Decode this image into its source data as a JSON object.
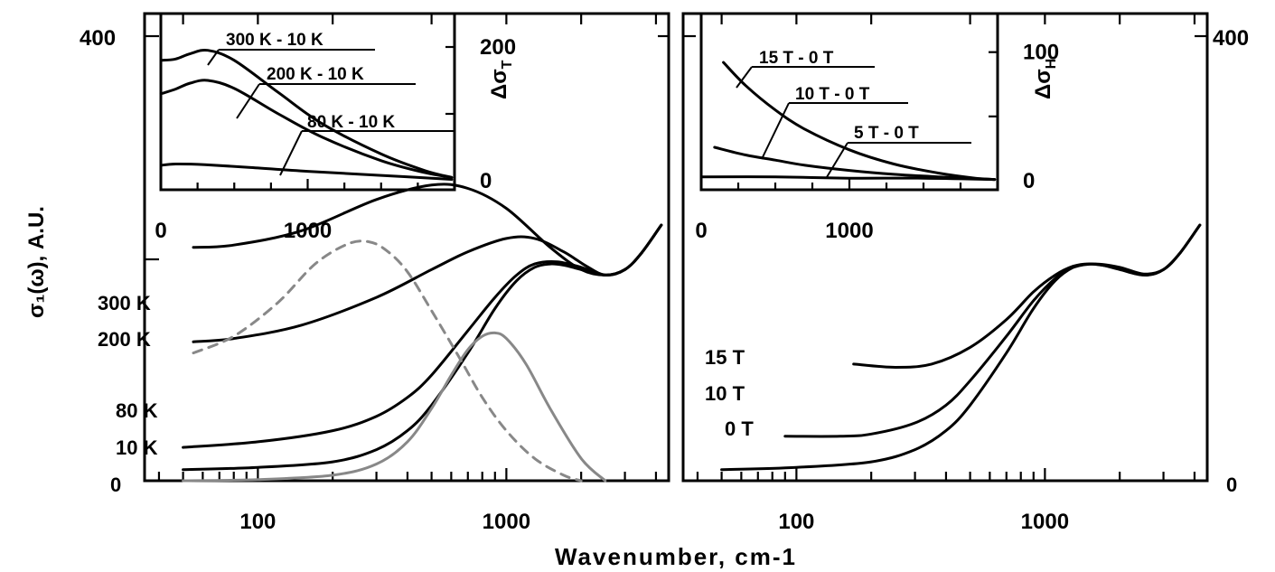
{
  "figure": {
    "ylabel": "σ₁(ω), A.U.",
    "xlabel": "Wavenumber, cm-1"
  },
  "chart_data": [
    {
      "id": "left-main",
      "type": "line",
      "xscale": "log",
      "xlim": [
        35,
        4500
      ],
      "ylim": [
        0,
        400
      ],
      "xticks": [
        100,
        1000
      ],
      "xtick_labels": [
        "100",
        "1000"
      ],
      "yticks": [
        0,
        400
      ],
      "ytick_labels": [
        "0",
        "400"
      ],
      "series": [
        {
          "name": "300 K",
          "color": "#000000",
          "dash": "",
          "x": [
            55,
            80,
            150,
            300,
            500,
            700,
            1000,
            1500,
            2000,
            2500,
            3000,
            3500,
            4200
          ],
          "y": [
            210,
            212,
            225,
            253,
            266,
            263,
            245,
            210,
            190,
            185,
            190,
            205,
            230
          ]
        },
        {
          "name": "200 K",
          "color": "#000000",
          "dash": "",
          "x": [
            55,
            80,
            150,
            300,
            500,
            700,
            1000,
            1300,
            1700,
            2100,
            2500,
            3000,
            3500,
            4200
          ],
          "y": [
            125,
            128,
            140,
            165,
            190,
            206,
            218,
            218,
            206,
            193,
            185,
            190,
            205,
            230
          ]
        },
        {
          "name": "80 K",
          "color": "#000000",
          "dash": "",
          "x": [
            50,
            100,
            200,
            300,
            400,
            500,
            700,
            900,
            1100,
            1300,
            1600,
            2000,
            2500,
            3000,
            3500,
            4200
          ],
          "y": [
            30,
            35,
            45,
            58,
            75,
            95,
            135,
            165,
            185,
            195,
            197,
            192,
            185,
            190,
            205,
            230
          ]
        },
        {
          "name": "10 K",
          "color": "#000000",
          "dash": "",
          "x": [
            50,
            100,
            200,
            300,
            400,
            500,
            700,
            900,
            1100,
            1300,
            1500,
            1700,
            2000,
            2500,
            3000,
            3500,
            4200
          ],
          "y": [
            10,
            12,
            17,
            28,
            45,
            68,
            115,
            155,
            180,
            192,
            195,
            194,
            190,
            185,
            190,
            205,
            230
          ]
        },
        {
          "name": "",
          "color": "#888888",
          "dash": "10,8",
          "x": [
            55,
            80,
            120,
            170,
            230,
            280,
            330,
            400,
            500,
            650,
            800,
            1000,
            1300,
            1700,
            2000
          ],
          "y": [
            115,
            130,
            160,
            195,
            213,
            215,
            207,
            188,
            153,
            110,
            75,
            45,
            20,
            5,
            0
          ]
        },
        {
          "name": "",
          "color": "#888888",
          "dash": "",
          "x": [
            50,
            100,
            200,
            300,
            400,
            500,
            600,
            700,
            800,
            900,
            1000,
            1200,
            1500,
            2000,
            2500
          ],
          "y": [
            0,
            1,
            5,
            15,
            35,
            65,
            95,
            118,
            130,
            133,
            128,
            105,
            65,
            20,
            0
          ]
        }
      ],
      "annotations": [
        "300 K",
        "200 K",
        "80 K",
        "10 K",
        "0"
      ]
    },
    {
      "id": "left-inset",
      "type": "line",
      "xlim": [
        0,
        2000
      ],
      "ylim": [
        0,
        250
      ],
      "xticks": [
        0,
        1000
      ],
      "xtick_labels": [
        "0",
        "1000"
      ],
      "yticks": [
        0,
        200
      ],
      "ytick_labels": [
        "0",
        "200"
      ],
      "ylabel": "Δσ_T",
      "series": [
        {
          "name": "300 K - 10 K",
          "x": [
            0,
            100,
            200,
            320,
            500,
            800,
            1100,
            1500,
            1800,
            1980
          ],
          "y": [
            180,
            182,
            190,
            195,
            180,
            132,
            85,
            40,
            15,
            5
          ]
        },
        {
          "name": "200 K - 10 K",
          "x": [
            0,
            100,
            200,
            320,
            500,
            800,
            1100,
            1500,
            1800,
            1980
          ],
          "y": [
            130,
            137,
            146,
            150,
            138,
            100,
            65,
            30,
            12,
            5
          ]
        },
        {
          "name": "80 K - 10 K",
          "x": [
            0,
            100,
            300,
            600,
            1000,
            1500,
            1980
          ],
          "y": [
            23,
            25,
            24,
            20,
            14,
            8,
            2
          ]
        }
      ]
    },
    {
      "id": "right-main",
      "type": "line",
      "xscale": "log",
      "xlim": [
        35,
        4500
      ],
      "ylim": [
        0,
        400
      ],
      "xticks": [
        100,
        1000
      ],
      "xtick_labels": [
        "100",
        "1000"
      ],
      "yticks": [
        0,
        400
      ],
      "ytick_labels": [
        "0",
        "400"
      ],
      "series": [
        {
          "name": "15 T",
          "x": [
            170,
            250,
            350,
            500,
            700,
            900,
            1100,
            1300,
            1500,
            1800,
            2200,
            2600,
            3000,
            3500,
            4200
          ],
          "y": [
            105,
            102,
            105,
            120,
            145,
            170,
            185,
            193,
            195,
            193,
            188,
            185,
            190,
            205,
            230
          ]
        },
        {
          "name": "10 T",
          "x": [
            90,
            150,
            200,
            300,
            400,
            500,
            700,
            900,
            1100,
            1300,
            1600,
            2000,
            2500,
            3000,
            3500,
            4200
          ],
          "y": [
            40,
            40,
            42,
            52,
            68,
            90,
            130,
            162,
            182,
            192,
            195,
            192,
            186,
            190,
            205,
            230
          ]
        },
        {
          "name": "0 T",
          "x": [
            50,
            100,
            200,
            300,
            400,
            500,
            700,
            900,
            1100,
            1300,
            1500,
            1700,
            2000,
            2500,
            3000,
            3500,
            4200
          ],
          "y": [
            10,
            12,
            17,
            28,
            45,
            68,
            115,
            155,
            180,
            192,
            195,
            194,
            190,
            185,
            190,
            205,
            230
          ]
        }
      ],
      "annotations": [
        "15 T",
        "10 T",
        "0 T",
        "0"
      ]
    },
    {
      "id": "right-inset",
      "type": "line",
      "xlim": [
        0,
        2000
      ],
      "ylim": [
        0,
        130
      ],
      "xticks": [
        0,
        1000
      ],
      "xtick_labels": [
        "0",
        "1000"
      ],
      "yticks": [
        0,
        100
      ],
      "ytick_labels": [
        "0",
        "100"
      ],
      "ylabel": "Δσ_H",
      "series": [
        {
          "name": "15 T - 0 T",
          "x": [
            150,
            300,
            500,
            700,
            1000,
            1300,
            1600,
            1850,
            1980
          ],
          "y": [
            92,
            74,
            55,
            40,
            24,
            13,
            6,
            2,
            1
          ]
        },
        {
          "name": "10 T - 0 T",
          "x": [
            90,
            300,
            500,
            700,
            1000,
            1300,
            1600,
            1980
          ],
          "y": [
            26,
            20,
            16,
            12,
            8,
            5,
            3,
            1
          ]
        },
        {
          "name": "5 T - 0 T",
          "x": [
            0,
            500,
            1000,
            1500,
            1980
          ],
          "y": [
            3,
            3,
            2,
            2,
            1
          ]
        }
      ]
    }
  ]
}
